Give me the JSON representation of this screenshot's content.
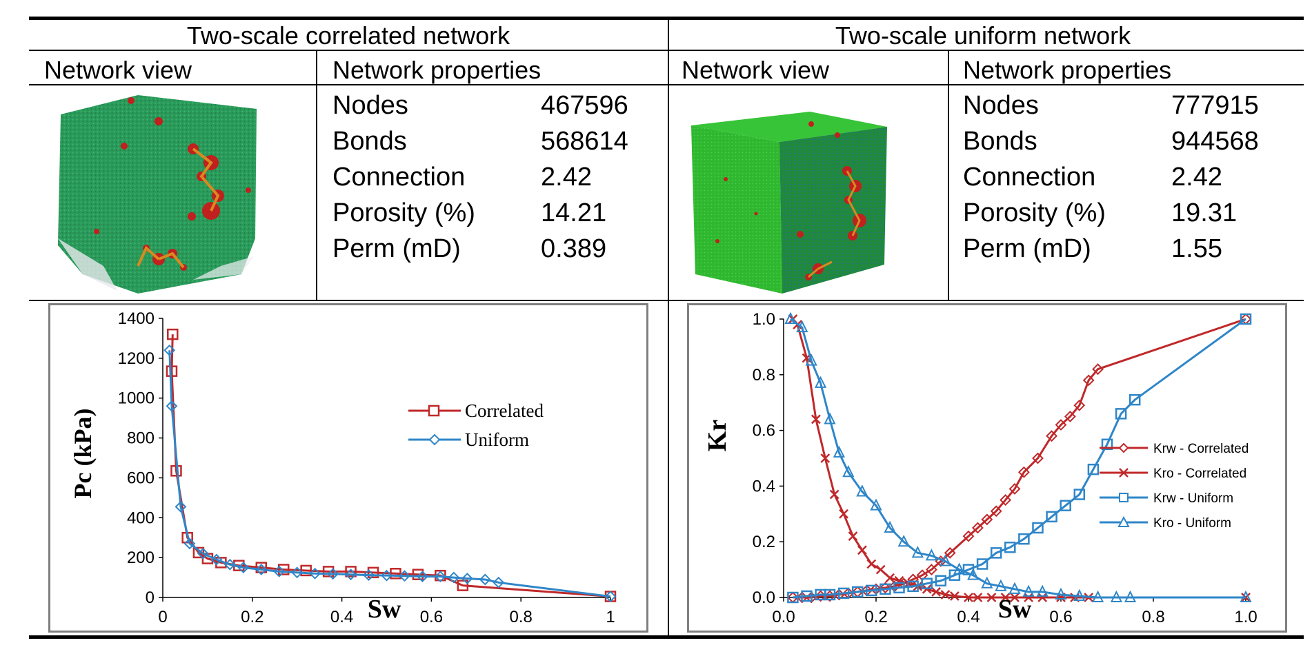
{
  "panels": [
    {
      "title": "Two-scale correlated network",
      "view_header": "Network view",
      "props_header": "Network properties",
      "properties": [
        {
          "label": "Nodes",
          "value": "467596"
        },
        {
          "label": "Bonds",
          "value": "568614"
        },
        {
          "label": "Connection",
          "value": "2.42"
        },
        {
          "label": "Porosity (%)",
          "value": "14.21"
        },
        {
          "label": "Perm (mD)",
          "value": "0.389"
        }
      ],
      "image": {
        "description_icon": "network-cube-icon",
        "colors": {
          "matrix": "#2a9a5a",
          "pores": "#c0201e",
          "throats": "#d88a20"
        }
      }
    },
    {
      "title": "Two-scale uniform network",
      "view_header": "Network view",
      "props_header": "Network properties",
      "properties": [
        {
          "label": "Nodes",
          "value": "777915"
        },
        {
          "label": "Bonds",
          "value": "944568"
        },
        {
          "label": "Connection",
          "value": "2.42"
        },
        {
          "label": "Porosity (%)",
          "value": "19.31"
        },
        {
          "label": "Perm (mD)",
          "value": "1.55"
        }
      ],
      "image": {
        "description_icon": "network-cube-icon",
        "colors": {
          "front": "#2fb82f",
          "side": "#1f8a3a",
          "top": "#35c035",
          "pores": "#c0201e"
        }
      }
    }
  ],
  "chart_data": [
    {
      "type": "line",
      "xlabel": "Sw",
      "ylabel": "Pc (kPa)",
      "xlim": [
        0,
        1
      ],
      "ylim": [
        0,
        1400
      ],
      "xticks": [
        "0",
        "0.2",
        "0.4",
        "0.6",
        "0.8",
        "1"
      ],
      "yticks": [
        "0",
        "200",
        "400",
        "600",
        "800",
        "1000",
        "1200",
        "1400"
      ],
      "legend_position": "right",
      "series": [
        {
          "name": "Correlated",
          "color": "#c0282a",
          "marker": "square",
          "x": [
            0.022,
            0.02,
            0.03,
            0.055,
            0.08,
            0.1,
            0.13,
            0.17,
            0.22,
            0.27,
            0.32,
            0.37,
            0.42,
            0.47,
            0.52,
            0.57,
            0.62,
            0.67,
            1.0
          ],
          "y": [
            1320,
            1135,
            635,
            300,
            225,
            195,
            175,
            160,
            150,
            140,
            135,
            130,
            130,
            125,
            120,
            115,
            110,
            60,
            5
          ]
        },
        {
          "name": "Uniform",
          "color": "#2e86c8",
          "marker": "diamond",
          "x": [
            0.015,
            0.02,
            0.04,
            0.06,
            0.09,
            0.12,
            0.15,
            0.18,
            0.22,
            0.26,
            0.3,
            0.34,
            0.38,
            0.42,
            0.46,
            0.5,
            0.54,
            0.58,
            0.62,
            0.65,
            0.68,
            0.72,
            0.75,
            1.0
          ],
          "y": [
            1240,
            960,
            455,
            270,
            220,
            190,
            165,
            150,
            140,
            130,
            125,
            120,
            118,
            115,
            112,
            110,
            108,
            105,
            105,
            100,
            95,
            90,
            75,
            5
          ]
        }
      ]
    },
    {
      "type": "line",
      "xlabel": "Sw",
      "ylabel": "Kr",
      "xlim": [
        0,
        1
      ],
      "ylim": [
        0,
        1
      ],
      "xticks": [
        "0.0",
        "0.2",
        "0.4",
        "0.6",
        "0.8",
        "1.0"
      ],
      "yticks": [
        "0.0",
        "0.2",
        "0.4",
        "0.6",
        "0.8",
        "1.0"
      ],
      "legend_position": "right",
      "series": [
        {
          "name": "Krw - Correlated",
          "color": "#c0282a",
          "marker": "diamond",
          "x": [
            0.02,
            0.04,
            0.06,
            0.08,
            0.1,
            0.12,
            0.14,
            0.16,
            0.18,
            0.2,
            0.22,
            0.24,
            0.26,
            0.28,
            0.3,
            0.32,
            0.34,
            0.36,
            0.4,
            0.42,
            0.44,
            0.46,
            0.48,
            0.5,
            0.52,
            0.55,
            0.58,
            0.6,
            0.62,
            0.64,
            0.66,
            0.68,
            1.0
          ],
          "y": [
            0.0,
            0.0,
            0.0,
            0.005,
            0.005,
            0.01,
            0.015,
            0.02,
            0.025,
            0.03,
            0.035,
            0.04,
            0.05,
            0.065,
            0.08,
            0.1,
            0.13,
            0.16,
            0.22,
            0.25,
            0.28,
            0.31,
            0.35,
            0.39,
            0.45,
            0.5,
            0.58,
            0.62,
            0.65,
            0.69,
            0.78,
            0.82,
            1.0
          ]
        },
        {
          "name": "Kro - Correlated",
          "color": "#c0282a",
          "marker": "cross",
          "x": [
            0.02,
            0.03,
            0.05,
            0.07,
            0.09,
            0.11,
            0.13,
            0.15,
            0.17,
            0.19,
            0.21,
            0.23,
            0.25,
            0.27,
            0.29,
            0.31,
            0.33,
            0.35,
            0.37,
            0.4,
            0.42,
            0.45,
            0.48,
            0.5,
            0.53,
            0.56,
            0.6,
            0.63,
            0.66,
            1.0
          ],
          "y": [
            1.0,
            0.98,
            0.86,
            0.64,
            0.5,
            0.37,
            0.3,
            0.22,
            0.17,
            0.12,
            0.1,
            0.07,
            0.06,
            0.05,
            0.04,
            0.03,
            0.02,
            0.01,
            0.005,
            0.0,
            0.0,
            0.0,
            0.0,
            0.0,
            0.0,
            0.0,
            0.0,
            0.0,
            0.0,
            0.0
          ]
        },
        {
          "name": "Krw - Uniform",
          "color": "#2e86c8",
          "marker": "square",
          "x": [
            0.02,
            0.05,
            0.08,
            0.1,
            0.13,
            0.16,
            0.19,
            0.22,
            0.25,
            0.28,
            0.31,
            0.34,
            0.37,
            0.4,
            0.43,
            0.46,
            0.49,
            0.52,
            0.55,
            0.58,
            0.61,
            0.64,
            0.67,
            0.7,
            0.73,
            0.76,
            1.0
          ],
          "y": [
            0.0,
            0.005,
            0.01,
            0.01,
            0.015,
            0.02,
            0.025,
            0.03,
            0.035,
            0.04,
            0.05,
            0.06,
            0.08,
            0.1,
            0.12,
            0.16,
            0.18,
            0.21,
            0.25,
            0.29,
            0.33,
            0.37,
            0.46,
            0.55,
            0.66,
            0.71,
            1.0
          ]
        },
        {
          "name": "Kro - Uniform",
          "color": "#2e86c8",
          "marker": "triangle",
          "x": [
            0.015,
            0.04,
            0.06,
            0.08,
            0.1,
            0.12,
            0.14,
            0.17,
            0.2,
            0.23,
            0.26,
            0.29,
            0.32,
            0.35,
            0.38,
            0.41,
            0.44,
            0.47,
            0.5,
            0.53,
            0.56,
            0.6,
            0.64,
            0.68,
            0.72,
            0.75,
            1.0
          ],
          "y": [
            1.0,
            0.97,
            0.85,
            0.77,
            0.64,
            0.52,
            0.45,
            0.38,
            0.33,
            0.25,
            0.2,
            0.16,
            0.15,
            0.13,
            0.1,
            0.08,
            0.05,
            0.04,
            0.03,
            0.02,
            0.02,
            0.01,
            0.005,
            0.0,
            0.0,
            0.0,
            0.0
          ]
        }
      ]
    }
  ]
}
